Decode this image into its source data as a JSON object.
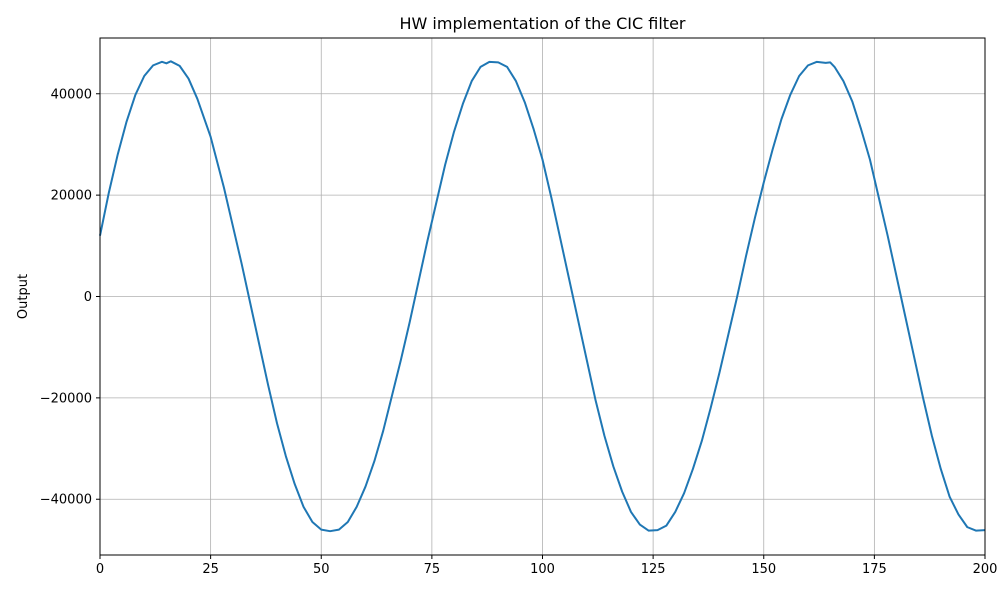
{
  "chart_data": {
    "type": "line",
    "title": "HW implementation of the CIC filter",
    "xlabel": "",
    "ylabel": "Output",
    "xlim": [
      0,
      200
    ],
    "ylim": [
      -51000,
      51000
    ],
    "xticks": [
      0,
      25,
      50,
      75,
      100,
      125,
      150,
      175,
      200
    ],
    "xtick_labels": [
      "0",
      "25",
      "50",
      "75",
      "100",
      "125",
      "150",
      "175",
      "200"
    ],
    "yticks": [
      -40000,
      -20000,
      0,
      20000,
      40000
    ],
    "ytick_labels": [
      "−40000",
      "−20000",
      "0",
      "20000",
      "40000"
    ],
    "grid": true,
    "series": [
      {
        "color": "#1f77b4",
        "x": [
          0,
          2,
          4,
          6,
          8,
          10,
          12,
          14,
          15,
          16,
          18,
          20,
          22,
          25,
          28,
          30,
          32,
          34,
          36,
          38,
          40,
          42,
          44,
          46,
          48,
          50,
          52,
          54,
          56,
          58,
          60,
          62,
          64,
          66,
          68,
          70,
          72,
          74,
          76,
          78,
          80,
          82,
          84,
          86,
          88,
          90,
          92,
          94,
          96,
          98,
          100,
          102,
          104,
          106,
          108,
          110,
          112,
          114,
          116,
          118,
          120,
          122,
          124,
          126,
          128,
          130,
          132,
          134,
          136,
          138,
          140,
          142,
          144,
          146,
          148,
          150,
          152,
          154,
          156,
          158,
          160,
          162,
          164,
          165,
          166,
          168,
          170,
          172,
          174,
          176,
          178,
          180,
          182,
          184,
          186,
          188,
          190,
          192,
          194,
          196,
          198,
          200
        ],
        "y": [
          12000,
          20500,
          28000,
          34500,
          39800,
          43500,
          45600,
          46300,
          46000,
          46400,
          45500,
          43000,
          39000,
          31500,
          21500,
          14000,
          6500,
          -1500,
          -9500,
          -17500,
          -25000,
          -31500,
          -37000,
          -41500,
          -44500,
          -46000,
          -46300,
          -46000,
          -44500,
          -41500,
          -37500,
          -32500,
          -26500,
          -19500,
          -12500,
          -5000,
          3000,
          11000,
          18500,
          26000,
          32500,
          38000,
          42500,
          45300,
          46300,
          46200,
          45300,
          42500,
          38300,
          33000,
          27000,
          19500,
          11500,
          3500,
          -4500,
          -12500,
          -20500,
          -27500,
          -33500,
          -38500,
          -42500,
          -45000,
          -46200,
          -46100,
          -45200,
          -42500,
          -38800,
          -34000,
          -28500,
          -22000,
          -15000,
          -7500,
          0,
          8000,
          15500,
          22500,
          29000,
          35000,
          39800,
          43500,
          45600,
          46300,
          46100,
          46200,
          45300,
          42500,
          38500,
          33000,
          27000,
          19500,
          12000,
          4000,
          -4000,
          -12000,
          -20000,
          -27500,
          -34000,
          -39500,
          -43000,
          -45500,
          -46200,
          -46100
        ]
      }
    ]
  }
}
